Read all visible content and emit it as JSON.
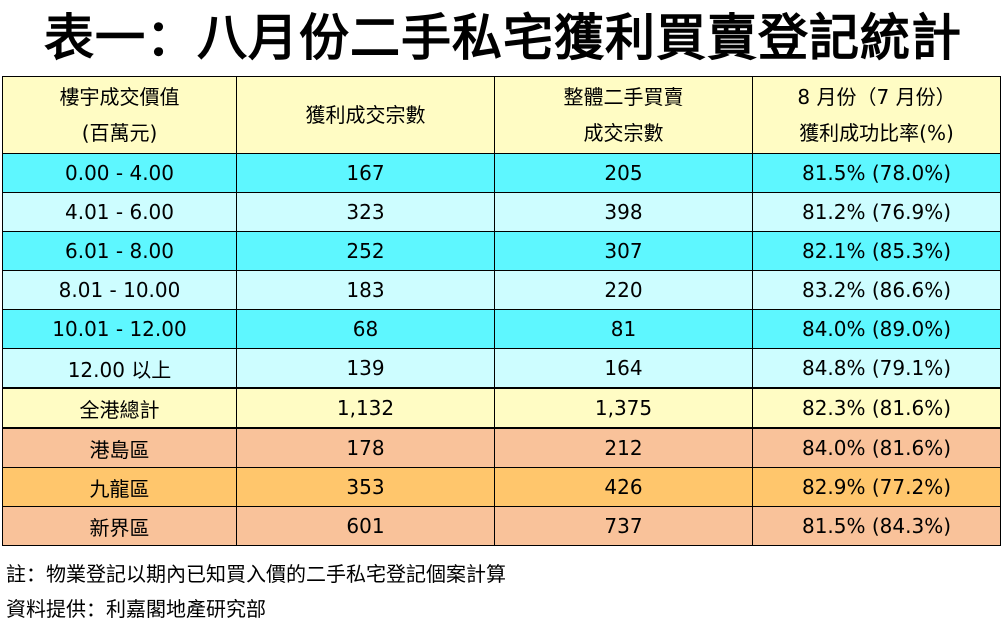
{
  "title": "表一：八月份二手私宅獲利買賣登記統計",
  "table": {
    "headers": [
      [
        "樓宇成交價值",
        "(百萬元)"
      ],
      [
        "獲利成交宗數"
      ],
      [
        "整體二手買賣",
        "成交宗數"
      ],
      [
        "8 月份（7 月份）",
        "獲利成功比率(%)"
      ]
    ],
    "rows": [
      {
        "range": "0.00 - 4.00",
        "profit": "167",
        "total": "205",
        "rate": "81.5% (78.0%)"
      },
      {
        "range": "4.01 - 6.00",
        "profit": "323",
        "total": "398",
        "rate": "81.2% (76.9%)"
      },
      {
        "range": "6.01 - 8.00",
        "profit": "252",
        "total": "307",
        "rate": "82.1% (85.3%)"
      },
      {
        "range": "8.01 - 10.00",
        "profit": "183",
        "total": "220",
        "rate": "83.2% (86.6%)"
      },
      {
        "range": "10.01 - 12.00",
        "profit": "68",
        "total": "81",
        "rate": "84.0% (89.0%)"
      },
      {
        "range": "12.00 以上",
        "profit": "139",
        "total": "164",
        "rate": "84.8% (79.1%)"
      }
    ],
    "total_row": {
      "range": "全港總計",
      "profit": "1,132",
      "total": "1,375",
      "rate": "82.3% (81.6%)"
    },
    "region_rows": [
      {
        "range": "港島區",
        "profit": "178",
        "total": "212",
        "rate": "84.0% (81.6%)"
      },
      {
        "range": "九龍區",
        "profit": "353",
        "total": "426",
        "rate": "82.9% (77.2%)"
      },
      {
        "range": "新界區",
        "profit": "601",
        "total": "737",
        "rate": "81.5% (84.3%)"
      }
    ]
  },
  "notes": {
    "note": "註：物業登記以期內已知買入價的二手私宅登記個案計算",
    "source": "資料提供：利嘉閣地產研究部"
  },
  "colors": {
    "header": "#fffcc4",
    "band_dark": "#5ef7ff",
    "band_light": "#cdfdff",
    "hk_island": "#f9c29a",
    "kowloon": "#ffc66c",
    "nt": "#f9c29a"
  }
}
